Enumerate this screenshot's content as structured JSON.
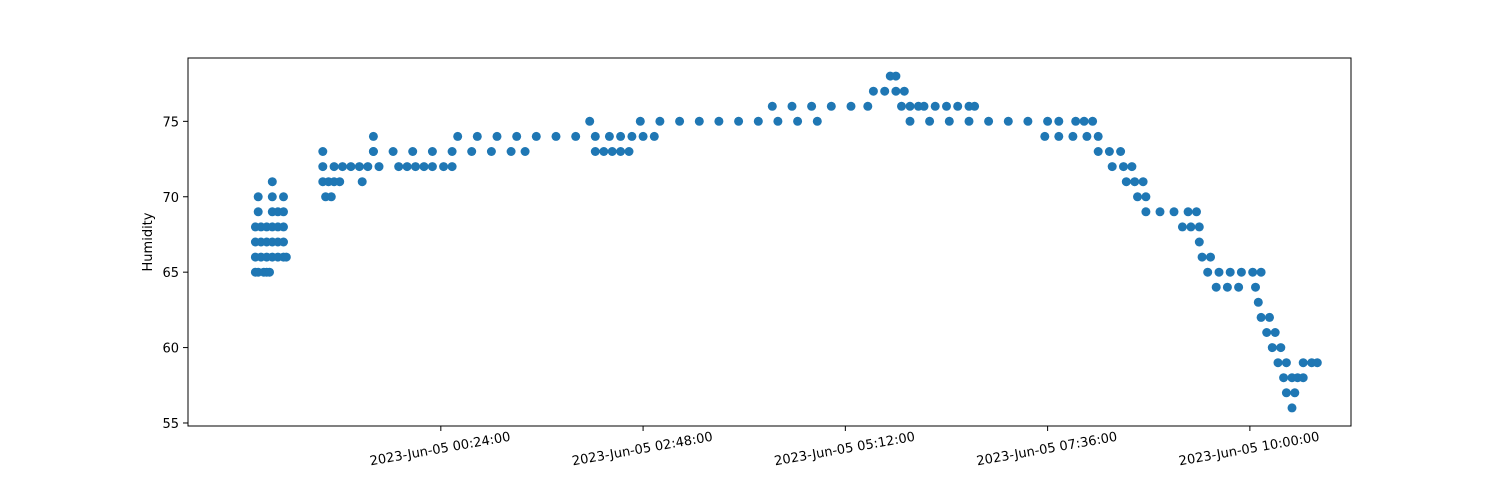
{
  "chart_data": {
    "type": "scatter",
    "title": "",
    "xlabel": "",
    "ylabel": "Humidity",
    "marker_color": "#1f77b4",
    "grid": false,
    "legend": "none",
    "x_is_time": true,
    "xlim": [
      "2023-06-04T21:24:00",
      "2023-06-05T11:12:00"
    ],
    "ylim": [
      54.8,
      79.2
    ],
    "x_ticks": [
      {
        "value": "2023-06-05T00:24:00",
        "label": "2023-Jun-05 00:24:00"
      },
      {
        "value": "2023-06-05T02:48:00",
        "label": "2023-Jun-05 02:48:00"
      },
      {
        "value": "2023-06-05T05:12:00",
        "label": "2023-Jun-05 05:12:00"
      },
      {
        "value": "2023-06-05T07:36:00",
        "label": "2023-Jun-05 07:36:00"
      },
      {
        "value": "2023-06-05T10:00:00",
        "label": "2023-Jun-05 10:00:00"
      }
    ],
    "y_ticks": [
      {
        "value": 55,
        "label": "55"
      },
      {
        "value": 60,
        "label": "60"
      },
      {
        "value": 65,
        "label": "65"
      },
      {
        "value": 70,
        "label": "70"
      },
      {
        "value": 75,
        "label": "75"
      }
    ],
    "series": [
      {
        "points": [
          [
            "2023-06-04T22:12:00",
            65
          ],
          [
            "2023-06-04T22:14:00",
            65
          ],
          [
            "2023-06-04T22:18:00",
            65
          ],
          [
            "2023-06-04T22:20:00",
            65
          ],
          [
            "2023-06-04T22:22:00",
            65
          ],
          [
            "2023-06-04T22:12:00",
            66
          ],
          [
            "2023-06-04T22:16:00",
            66
          ],
          [
            "2023-06-04T22:20:00",
            66
          ],
          [
            "2023-06-04T22:24:00",
            66
          ],
          [
            "2023-06-04T22:28:00",
            66
          ],
          [
            "2023-06-04T22:32:00",
            66
          ],
          [
            "2023-06-04T22:34:00",
            66
          ],
          [
            "2023-06-04T22:12:00",
            67
          ],
          [
            "2023-06-04T22:16:00",
            67
          ],
          [
            "2023-06-04T22:20:00",
            67
          ],
          [
            "2023-06-04T22:24:00",
            67
          ],
          [
            "2023-06-04T22:28:00",
            67
          ],
          [
            "2023-06-04T22:32:00",
            67
          ],
          [
            "2023-06-04T22:12:00",
            68
          ],
          [
            "2023-06-04T22:16:00",
            68
          ],
          [
            "2023-06-04T22:20:00",
            68
          ],
          [
            "2023-06-04T22:24:00",
            68
          ],
          [
            "2023-06-04T22:28:00",
            68
          ],
          [
            "2023-06-04T22:32:00",
            68
          ],
          [
            "2023-06-04T22:14:00",
            69
          ],
          [
            "2023-06-04T22:24:00",
            69
          ],
          [
            "2023-06-04T22:28:00",
            69
          ],
          [
            "2023-06-04T22:32:00",
            69
          ],
          [
            "2023-06-04T22:14:00",
            70
          ],
          [
            "2023-06-04T22:24:00",
            70
          ],
          [
            "2023-06-04T22:32:00",
            70
          ],
          [
            "2023-06-04T22:24:00",
            71
          ],
          [
            "2023-06-04T23:00:00",
            73
          ],
          [
            "2023-06-04T23:00:00",
            72
          ],
          [
            "2023-06-04T23:00:00",
            71
          ],
          [
            "2023-06-04T23:04:00",
            71
          ],
          [
            "2023-06-04T23:08:00",
            71
          ],
          [
            "2023-06-04T23:12:00",
            71
          ],
          [
            "2023-06-04T23:02:00",
            70
          ],
          [
            "2023-06-04T23:06:00",
            70
          ],
          [
            "2023-06-04T23:08:00",
            72
          ],
          [
            "2023-06-04T23:14:00",
            72
          ],
          [
            "2023-06-04T23:20:00",
            72
          ],
          [
            "2023-06-04T23:26:00",
            72
          ],
          [
            "2023-06-04T23:32:00",
            72
          ],
          [
            "2023-06-04T23:40:00",
            72
          ],
          [
            "2023-06-04T23:28:00",
            71
          ],
          [
            "2023-06-04T23:36:00",
            73
          ],
          [
            "2023-06-04T23:36:00",
            74
          ],
          [
            "2023-06-04T23:36:00",
            73
          ],
          [
            "2023-06-04T23:50:00",
            73
          ],
          [
            "2023-06-05T00:04:00",
            73
          ],
          [
            "2023-06-05T00:18:00",
            73
          ],
          [
            "2023-06-05T00:32:00",
            73
          ],
          [
            "2023-06-05T00:46:00",
            73
          ],
          [
            "2023-06-05T01:00:00",
            73
          ],
          [
            "2023-06-05T01:14:00",
            73
          ],
          [
            "2023-06-05T01:24:00",
            73
          ],
          [
            "2023-06-04T23:54:00",
            72
          ],
          [
            "2023-06-05T00:00:00",
            72
          ],
          [
            "2023-06-05T00:06:00",
            72
          ],
          [
            "2023-06-05T00:12:00",
            72
          ],
          [
            "2023-06-05T00:18:00",
            72
          ],
          [
            "2023-06-05T00:26:00",
            72
          ],
          [
            "2023-06-05T00:32:00",
            72
          ],
          [
            "2023-06-05T00:36:00",
            74
          ],
          [
            "2023-06-05T00:50:00",
            74
          ],
          [
            "2023-06-05T01:04:00",
            74
          ],
          [
            "2023-06-05T01:18:00",
            74
          ],
          [
            "2023-06-05T01:32:00",
            74
          ],
          [
            "2023-06-05T01:46:00",
            74
          ],
          [
            "2023-06-05T02:00:00",
            74
          ],
          [
            "2023-06-05T02:14:00",
            74
          ],
          [
            "2023-06-05T02:24:00",
            74
          ],
          [
            "2023-06-05T02:10:00",
            75
          ],
          [
            "2023-06-05T02:14:00",
            73
          ],
          [
            "2023-06-05T02:20:00",
            73
          ],
          [
            "2023-06-05T02:26:00",
            73
          ],
          [
            "2023-06-05T02:32:00",
            73
          ],
          [
            "2023-06-05T02:38:00",
            73
          ],
          [
            "2023-06-05T02:32:00",
            74
          ],
          [
            "2023-06-05T02:40:00",
            74
          ],
          [
            "2023-06-05T02:48:00",
            74
          ],
          [
            "2023-06-05T02:56:00",
            74
          ],
          [
            "2023-06-05T02:46:00",
            75
          ],
          [
            "2023-06-05T03:00:00",
            75
          ],
          [
            "2023-06-05T03:14:00",
            75
          ],
          [
            "2023-06-05T03:28:00",
            75
          ],
          [
            "2023-06-05T03:42:00",
            75
          ],
          [
            "2023-06-05T03:56:00",
            75
          ],
          [
            "2023-06-05T04:10:00",
            75
          ],
          [
            "2023-06-05T04:24:00",
            75
          ],
          [
            "2023-06-05T04:38:00",
            75
          ],
          [
            "2023-06-05T04:52:00",
            75
          ],
          [
            "2023-06-05T04:20:00",
            76
          ],
          [
            "2023-06-05T04:34:00",
            76
          ],
          [
            "2023-06-05T04:48:00",
            76
          ],
          [
            "2023-06-05T05:02:00",
            76
          ],
          [
            "2023-06-05T05:16:00",
            76
          ],
          [
            "2023-06-05T05:28:00",
            76
          ],
          [
            "2023-06-05T05:32:00",
            77
          ],
          [
            "2023-06-05T05:40:00",
            77
          ],
          [
            "2023-06-05T05:48:00",
            77
          ],
          [
            "2023-06-05T05:54:00",
            77
          ],
          [
            "2023-06-05T05:44:00",
            78
          ],
          [
            "2023-06-05T05:48:00",
            78
          ],
          [
            "2023-06-05T05:52:00",
            76
          ],
          [
            "2023-06-05T05:58:00",
            76
          ],
          [
            "2023-06-05T06:04:00",
            76
          ],
          [
            "2023-06-05T06:08:00",
            76
          ],
          [
            "2023-06-05T06:16:00",
            76
          ],
          [
            "2023-06-05T06:24:00",
            76
          ],
          [
            "2023-06-05T06:32:00",
            76
          ],
          [
            "2023-06-05T06:40:00",
            76
          ],
          [
            "2023-06-05T06:44:00",
            76
          ],
          [
            "2023-06-05T05:58:00",
            75
          ],
          [
            "2023-06-05T06:12:00",
            75
          ],
          [
            "2023-06-05T06:26:00",
            75
          ],
          [
            "2023-06-05T06:40:00",
            75
          ],
          [
            "2023-06-05T06:54:00",
            75
          ],
          [
            "2023-06-05T07:08:00",
            75
          ],
          [
            "2023-06-05T07:22:00",
            75
          ],
          [
            "2023-06-05T07:36:00",
            75
          ],
          [
            "2023-06-05T07:44:00",
            75
          ],
          [
            "2023-06-05T07:34:00",
            74
          ],
          [
            "2023-06-05T07:44:00",
            74
          ],
          [
            "2023-06-05T07:54:00",
            74
          ],
          [
            "2023-06-05T08:04:00",
            74
          ],
          [
            "2023-06-05T08:12:00",
            74
          ],
          [
            "2023-06-05T07:56:00",
            75
          ],
          [
            "2023-06-05T08:02:00",
            75
          ],
          [
            "2023-06-05T08:08:00",
            75
          ],
          [
            "2023-06-05T08:12:00",
            73
          ],
          [
            "2023-06-05T08:20:00",
            73
          ],
          [
            "2023-06-05T08:28:00",
            73
          ],
          [
            "2023-06-05T08:22:00",
            72
          ],
          [
            "2023-06-05T08:30:00",
            72
          ],
          [
            "2023-06-05T08:36:00",
            72
          ],
          [
            "2023-06-05T08:32:00",
            71
          ],
          [
            "2023-06-05T08:38:00",
            71
          ],
          [
            "2023-06-05T08:44:00",
            71
          ],
          [
            "2023-06-05T08:40:00",
            70
          ],
          [
            "2023-06-05T08:46:00",
            70
          ],
          [
            "2023-06-05T08:46:00",
            69
          ],
          [
            "2023-06-05T08:56:00",
            69
          ],
          [
            "2023-06-05T09:06:00",
            69
          ],
          [
            "2023-06-05T09:16:00",
            69
          ],
          [
            "2023-06-05T09:22:00",
            69
          ],
          [
            "2023-06-05T09:12:00",
            68
          ],
          [
            "2023-06-05T09:18:00",
            68
          ],
          [
            "2023-06-05T09:24:00",
            68
          ],
          [
            "2023-06-05T09:24:00",
            67
          ],
          [
            "2023-06-05T09:26:00",
            66
          ],
          [
            "2023-06-05T09:32:00",
            66
          ],
          [
            "2023-06-05T09:30:00",
            65
          ],
          [
            "2023-06-05T09:38:00",
            65
          ],
          [
            "2023-06-05T09:46:00",
            65
          ],
          [
            "2023-06-05T09:54:00",
            65
          ],
          [
            "2023-06-05T10:02:00",
            65
          ],
          [
            "2023-06-05T10:08:00",
            65
          ],
          [
            "2023-06-05T09:36:00",
            64
          ],
          [
            "2023-06-05T09:44:00",
            64
          ],
          [
            "2023-06-05T09:52:00",
            64
          ],
          [
            "2023-06-05T10:04:00",
            64
          ],
          [
            "2023-06-05T10:06:00",
            63
          ],
          [
            "2023-06-05T10:08:00",
            62
          ],
          [
            "2023-06-05T10:14:00",
            62
          ],
          [
            "2023-06-05T10:12:00",
            61
          ],
          [
            "2023-06-05T10:18:00",
            61
          ],
          [
            "2023-06-05T10:16:00",
            60
          ],
          [
            "2023-06-05T10:22:00",
            60
          ],
          [
            "2023-06-05T10:20:00",
            59
          ],
          [
            "2023-06-05T10:26:00",
            59
          ],
          [
            "2023-06-05T10:24:00",
            58
          ],
          [
            "2023-06-05T10:30:00",
            58
          ],
          [
            "2023-06-05T10:26:00",
            57
          ],
          [
            "2023-06-05T10:32:00",
            57
          ],
          [
            "2023-06-05T10:30:00",
            56
          ],
          [
            "2023-06-05T10:34:00",
            58
          ],
          [
            "2023-06-05T10:38:00",
            58
          ],
          [
            "2023-06-05T10:38:00",
            59
          ],
          [
            "2023-06-05T10:44:00",
            59
          ],
          [
            "2023-06-05T10:48:00",
            59
          ]
        ]
      }
    ]
  }
}
